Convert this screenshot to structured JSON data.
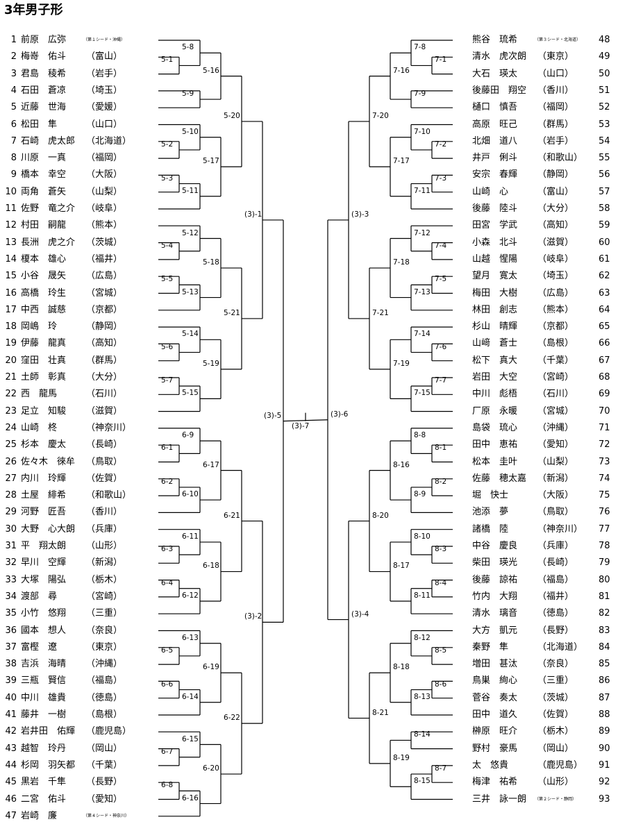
{
  "title": "3年男子形",
  "left_entries": [
    {
      "num": "1",
      "name": "前原　広弥",
      "pref": "",
      "note": "（第１シード・沖縄）"
    },
    {
      "num": "2",
      "name": "梅嵜　佑斗",
      "pref": "（富山）"
    },
    {
      "num": "3",
      "name": "君島　稜希",
      "pref": "（岩手）"
    },
    {
      "num": "4",
      "name": "石田　蒼凉",
      "pref": "（埼玉）"
    },
    {
      "num": "5",
      "name": "近藤　世海",
      "pref": "（愛媛）"
    },
    {
      "num": "6",
      "name": "松田　隼",
      "pref": "（山口）"
    },
    {
      "num": "7",
      "name": "石崎　虎太郎",
      "pref": "（北海道）"
    },
    {
      "num": "8",
      "name": "川原　一真",
      "pref": "（福岡）"
    },
    {
      "num": "9",
      "name": "橋本　幸空",
      "pref": "（大阪）"
    },
    {
      "num": "10",
      "name": "両角　蒼矢",
      "pref": "（山梨）"
    },
    {
      "num": "11",
      "name": "佐野　竜之介",
      "pref": "（岐阜）"
    },
    {
      "num": "12",
      "name": "村田　嗣龍",
      "pref": "（熊本）"
    },
    {
      "num": "13",
      "name": "長洲　虎之介",
      "pref": "（茨城）"
    },
    {
      "num": "14",
      "name": "榎本　雄心",
      "pref": "（福井）"
    },
    {
      "num": "15",
      "name": "小谷　晟矢",
      "pref": "（広島）"
    },
    {
      "num": "16",
      "name": "高橋　玲生",
      "pref": "（宮城）"
    },
    {
      "num": "17",
      "name": "中西　誠慈",
      "pref": "（京都）"
    },
    {
      "num": "18",
      "name": "岡嶋　玲",
      "pref": "（静岡）"
    },
    {
      "num": "19",
      "name": "伊藤　龍真",
      "pref": "（高知）"
    },
    {
      "num": "20",
      "name": "窪田　壮真",
      "pref": "（群馬）"
    },
    {
      "num": "21",
      "name": "土師　彰真",
      "pref": "（大分）"
    },
    {
      "num": "22",
      "name": "西　龍馬",
      "pref": "（石川）"
    },
    {
      "num": "23",
      "name": "足立　知駿",
      "pref": "（滋賀）"
    },
    {
      "num": "24",
      "name": "山崎　柊",
      "pref": "（神奈川）"
    },
    {
      "num": "25",
      "name": "杉本　慶太",
      "pref": "（長崎）"
    },
    {
      "num": "26",
      "name": "佐々木　徠牟",
      "pref": "（鳥取）"
    },
    {
      "num": "27",
      "name": "内川　玲輝",
      "pref": "（佐賀）"
    },
    {
      "num": "28",
      "name": "土屋　緋希",
      "pref": "（和歌山）"
    },
    {
      "num": "29",
      "name": "河野　匠吾",
      "pref": "（香川）"
    },
    {
      "num": "30",
      "name": "大野　心大朗",
      "pref": "（兵庫）"
    },
    {
      "num": "31",
      "name": "平　翔太朗",
      "pref": "（山形）"
    },
    {
      "num": "32",
      "name": "早川　空輝",
      "pref": "（新潟）"
    },
    {
      "num": "33",
      "name": "大塚　陽弘",
      "pref": "（栃木）"
    },
    {
      "num": "34",
      "name": "渡部　尋",
      "pref": "（宮崎）"
    },
    {
      "num": "35",
      "name": "小竹　悠翔",
      "pref": "（三重）"
    },
    {
      "num": "36",
      "name": "國本　想人",
      "pref": "（奈良）"
    },
    {
      "num": "37",
      "name": "富樫　遼",
      "pref": "（東京）"
    },
    {
      "num": "38",
      "name": "吉浜　海晴",
      "pref": "（沖縄）"
    },
    {
      "num": "39",
      "name": "三瓶　賢信",
      "pref": "（福島）"
    },
    {
      "num": "40",
      "name": "中川　雄貴",
      "pref": "（徳島）"
    },
    {
      "num": "41",
      "name": "藤井　一樹",
      "pref": "（島根）"
    },
    {
      "num": "42",
      "name": "岩井田　佑輝",
      "pref": "（鹿児島）"
    },
    {
      "num": "43",
      "name": "越智　玲丹",
      "pref": "（岡山）"
    },
    {
      "num": "44",
      "name": "杉岡　羽矢都",
      "pref": "（千葉）"
    },
    {
      "num": "45",
      "name": "黒岩　千隼",
      "pref": "（長野）"
    },
    {
      "num": "46",
      "name": "二宮　佑斗",
      "pref": "（愛知）"
    },
    {
      "num": "47",
      "name": "岩崎　廉",
      "pref": "",
      "note": "（第４シード・神奈川）"
    }
  ],
  "right_entries": [
    {
      "num": "48",
      "name": "熊谷　琉希",
      "pref": "",
      "note": "（第３シード・北海道）"
    },
    {
      "num": "49",
      "name": "清水　虎次朗",
      "pref": "（東京）"
    },
    {
      "num": "50",
      "name": "大石　瑛太",
      "pref": "（山口）"
    },
    {
      "num": "51",
      "name": "後藤田　翔空",
      "pref": "（香川）"
    },
    {
      "num": "52",
      "name": "樋口　慎吾",
      "pref": "（福岡）"
    },
    {
      "num": "53",
      "name": "高原　旺己",
      "pref": "（群馬）"
    },
    {
      "num": "54",
      "name": "北畑　道八",
      "pref": "（岩手）"
    },
    {
      "num": "55",
      "name": "井戸　俐斗",
      "pref": "（和歌山）"
    },
    {
      "num": "56",
      "name": "安宗　春輝",
      "pref": "（静岡）"
    },
    {
      "num": "57",
      "name": "山崎　心",
      "pref": "（富山）"
    },
    {
      "num": "58",
      "name": "後藤　陸斗",
      "pref": "（大分）"
    },
    {
      "num": "59",
      "name": "田宮　学武",
      "pref": "（高知）"
    },
    {
      "num": "60",
      "name": "小森　北斗",
      "pref": "（滋賀）"
    },
    {
      "num": "61",
      "name": "山越　惺陽",
      "pref": "（岐阜）"
    },
    {
      "num": "62",
      "name": "望月　寛太",
      "pref": "（埼玉）"
    },
    {
      "num": "63",
      "name": "梅田　大樹",
      "pref": "（広島）"
    },
    {
      "num": "64",
      "name": "林田　創志",
      "pref": "（熊本）"
    },
    {
      "num": "65",
      "name": "杉山　晴輝",
      "pref": "（京都）"
    },
    {
      "num": "66",
      "name": "山﨑　蒼士",
      "pref": "（島根）"
    },
    {
      "num": "67",
      "name": "松下　真大",
      "pref": "（千葉）"
    },
    {
      "num": "68",
      "name": "岩田　大空",
      "pref": "（宮崎）"
    },
    {
      "num": "69",
      "name": "中川　彪梧",
      "pref": "（石川）"
    },
    {
      "num": "70",
      "name": "厂原　永暖",
      "pref": "（宮城）"
    },
    {
      "num": "71",
      "name": "島袋　琉心",
      "pref": "（沖縄）"
    },
    {
      "num": "72",
      "name": "田中　恵祐",
      "pref": "（愛知）"
    },
    {
      "num": "73",
      "name": "松本　圭叶",
      "pref": "（山梨）"
    },
    {
      "num": "74",
      "name": "佐藤　穂太嘉",
      "pref": "（新潟）"
    },
    {
      "num": "75",
      "name": "堀　快士",
      "pref": "（大阪）"
    },
    {
      "num": "76",
      "name": "池添　夢",
      "pref": "（鳥取）"
    },
    {
      "num": "77",
      "name": "諸橋　陸",
      "pref": "（神奈川）"
    },
    {
      "num": "78",
      "name": "中谷　慶良",
      "pref": "（兵庫）"
    },
    {
      "num": "79",
      "name": "柴田　瑛光",
      "pref": "（長崎）"
    },
    {
      "num": "80",
      "name": "後藤　諒祐",
      "pref": "（福島）"
    },
    {
      "num": "81",
      "name": "竹内　大翔",
      "pref": "（福井）"
    },
    {
      "num": "82",
      "name": "清水　璃音",
      "pref": "（徳島）"
    },
    {
      "num": "83",
      "name": "大方　凱元",
      "pref": "（長野）"
    },
    {
      "num": "84",
      "name": "秦野　隼",
      "pref": "（北海道）"
    },
    {
      "num": "85",
      "name": "増田　甚汰",
      "pref": "（奈良）"
    },
    {
      "num": "86",
      "name": "鳥巣　絢心",
      "pref": "（三重）"
    },
    {
      "num": "87",
      "name": "菅谷　奏太",
      "pref": "（茨城）"
    },
    {
      "num": "88",
      "name": "田中　道久",
      "pref": "（佐賀）"
    },
    {
      "num": "89",
      "name": "榊原　旺介",
      "pref": "（栃木）"
    },
    {
      "num": "90",
      "name": "野村　豪馬",
      "pref": "（岡山）"
    },
    {
      "num": "91",
      "name": "太　悠貴",
      "pref": "（鹿児島）"
    },
    {
      "num": "92",
      "name": "梅津　祐希",
      "pref": "（山形）"
    },
    {
      "num": "93",
      "name": "三井　詠一朗",
      "pref": "",
      "note": "（第２シード・静岡）"
    }
  ],
  "match_labels": {
    "l1": [
      "5-1",
      "5-2",
      "5-3",
      "5-4",
      "5-5",
      "5-6",
      "5-7",
      "6-1",
      "6-2",
      "6-3",
      "6-4",
      "6-5",
      "6-6",
      "6-7",
      "6-8"
    ],
    "l2": [
      "5-8",
      "5-9",
      "5-10",
      "5-11",
      "5-12",
      "5-13",
      "5-14",
      "5-15",
      "6-9",
      "6-10",
      "6-11",
      "6-12",
      "6-13",
      "6-14",
      "6-15",
      "6-16"
    ],
    "l3": [
      "5-16",
      "5-17",
      "5-18",
      "5-19",
      "6-17",
      "6-18",
      "6-19",
      "6-20"
    ],
    "l4": [
      "5-20",
      "5-21",
      "6-21",
      "6-22"
    ],
    "l5": [
      "(3)-1",
      "(3)-2"
    ],
    "l6": "(3)-5",
    "r1": [
      "7-1",
      "7-2",
      "7-3",
      "7-4",
      "7-5",
      "7-6",
      "7-7",
      "8-1",
      "8-2",
      "8-3",
      "8-4",
      "8-5",
      "8-6",
      "8-7"
    ],
    "r2": [
      "7-8",
      "7-9",
      "7-10",
      "7-11",
      "7-12",
      "7-13",
      "7-14",
      "7-15",
      "8-8",
      "8-9",
      "8-10",
      "8-11",
      "8-12",
      "8-13",
      "8-14",
      "8-15"
    ],
    "r3": [
      "7-16",
      "7-17",
      "7-18",
      "7-19",
      "8-16",
      "8-17",
      "8-18",
      "8-19"
    ],
    "r4": [
      "7-20",
      "7-21",
      "8-20",
      "8-21"
    ],
    "r5": [
      "(3)-3",
      "(3)-4"
    ],
    "r6": "(3)-6",
    "final": "(3)-7"
  }
}
